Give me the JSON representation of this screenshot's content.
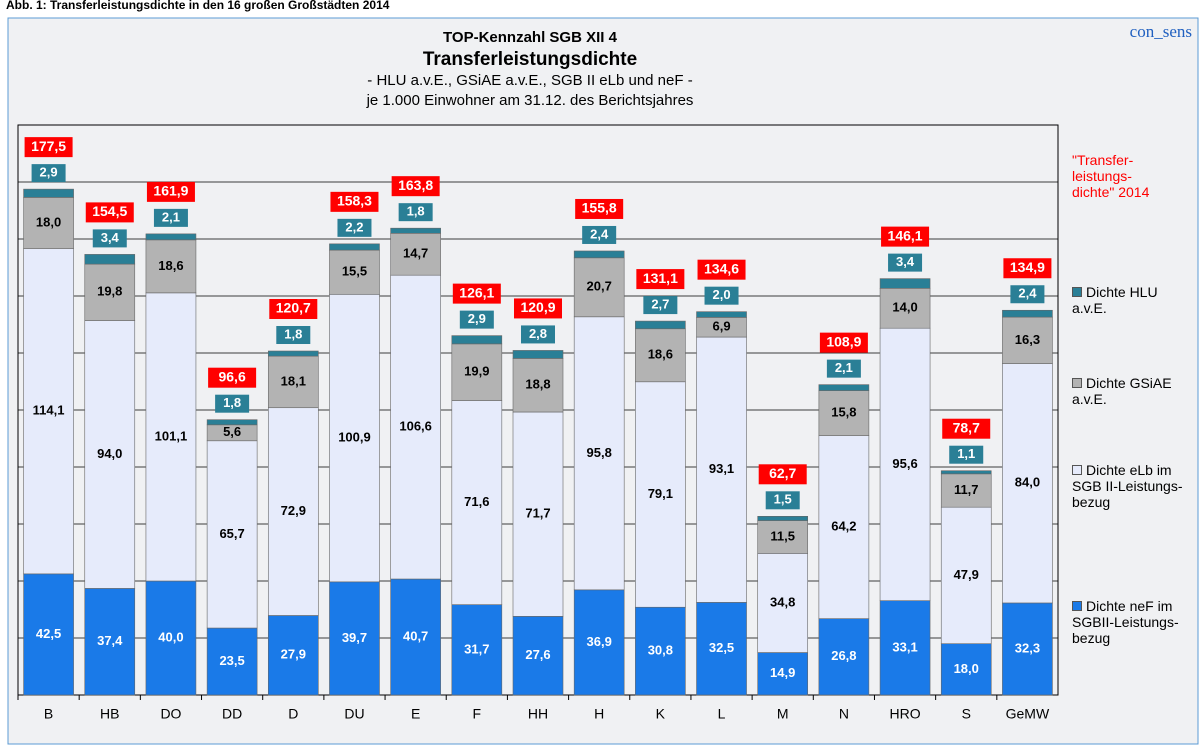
{
  "caption": "Abb. 1: Transferleistungsdichte in den 16 großen Großstädten 2014",
  "brand": "con_sens",
  "chart_data": {
    "type": "stacked_bar",
    "title": "TOP-Kennzahl SGB XII 4",
    "subtitle": "Transferleistungsdichte",
    "notes": [
      "- HLU a.v.E., GSiAE a.v.E., SGB II eLb und neF -",
      "je 1.000 Einwohner am 31.12. des Berichtsjahres"
    ],
    "categories": [
      "B",
      "HB",
      "DO",
      "DD",
      "D",
      "DU",
      "E",
      "F",
      "HH",
      "H",
      "K",
      "L",
      "M",
      "N",
      "HRO",
      "S",
      "GeMW"
    ],
    "ylim": [
      0,
      200
    ],
    "yticks": [
      0,
      20,
      40,
      60,
      80,
      100,
      120,
      140,
      160,
      180,
      200
    ],
    "grid": true,
    "series": [
      {
        "name": "Dichte neF im SGBII-Leistungs-bezug",
        "color": "#1a7ae8",
        "values": [
          42.5,
          37.4,
          40.0,
          23.5,
          27.9,
          39.7,
          40.7,
          31.7,
          27.6,
          36.9,
          30.8,
          32.5,
          14.9,
          26.8,
          33.1,
          18.0,
          32.3
        ],
        "value_labels": [
          "42,5",
          "37,4",
          "40,0",
          "23,5",
          "27,9",
          "39,7",
          "40,7",
          "31,7",
          "27,6",
          "36,9",
          "30,8",
          "32,5",
          "14,9",
          "26,8",
          "33,1",
          "18,0",
          "32,3"
        ]
      },
      {
        "name": "Dichte eLb im SGB II-Leistungs-bezug",
        "color": "#e6ebfb",
        "values": [
          114.1,
          94.0,
          101.1,
          65.7,
          72.9,
          100.9,
          106.6,
          71.6,
          71.7,
          95.8,
          79.1,
          93.1,
          34.8,
          64.2,
          95.6,
          47.9,
          84.0
        ],
        "value_labels": [
          "114,1",
          "94,0",
          "101,1",
          "65,7",
          "72,9",
          "100,9",
          "106,6",
          "71,6",
          "71,7",
          "95,8",
          "79,1",
          "93,1",
          "34,8",
          "64,2",
          "95,6",
          "47,9",
          "84,0"
        ]
      },
      {
        "name": "Dichte GSiAE a.v.E.",
        "color": "#b3b3b3",
        "values": [
          18.0,
          19.8,
          18.6,
          5.6,
          18.1,
          15.5,
          14.7,
          19.9,
          18.8,
          20.7,
          18.6,
          6.9,
          11.5,
          15.8,
          14.0,
          11.7,
          16.3
        ],
        "value_labels": [
          "18,0",
          "19,8",
          "18,6",
          "5,6",
          "18,1",
          "15,5",
          "14,7",
          "19,9",
          "18,8",
          "20,7",
          "18,6",
          "6,9",
          "11,5",
          "15,8",
          "14,0",
          "11,7",
          "16,3"
        ]
      },
      {
        "name": "Dichte HLU a.v.E.",
        "color": "#2a7f96",
        "values": [
          2.9,
          3.4,
          2.1,
          1.8,
          1.8,
          2.2,
          1.8,
          2.9,
          2.8,
          2.4,
          2.7,
          2.0,
          1.5,
          2.1,
          3.4,
          1.1,
          2.4
        ],
        "value_labels": [
          "2,9",
          "3,4",
          "2,1",
          "1,8",
          "1,8",
          "2,2",
          "1,8",
          "2,9",
          "2,8",
          "2,4",
          "2,7",
          "2,0",
          "1,5",
          "2,1",
          "3,4",
          "1,1",
          "2,4"
        ]
      }
    ],
    "totals": {
      "name": "\"Transfer-leistungs-dichte\" 2014",
      "color": "#ff0000",
      "values": [
        177.5,
        154.5,
        161.9,
        96.6,
        120.7,
        158.3,
        163.8,
        126.1,
        120.9,
        155.8,
        131.1,
        134.6,
        62.7,
        108.9,
        146.1,
        78.7,
        134.9
      ],
      "value_labels": [
        "177,5",
        "154,5",
        "161,9",
        "96,6",
        "120,7",
        "158,3",
        "163,8",
        "126,1",
        "120,9",
        "155,8",
        "131,1",
        "134,6",
        "62,7",
        "108,9",
        "146,1",
        "78,7",
        "134,9"
      ]
    }
  }
}
